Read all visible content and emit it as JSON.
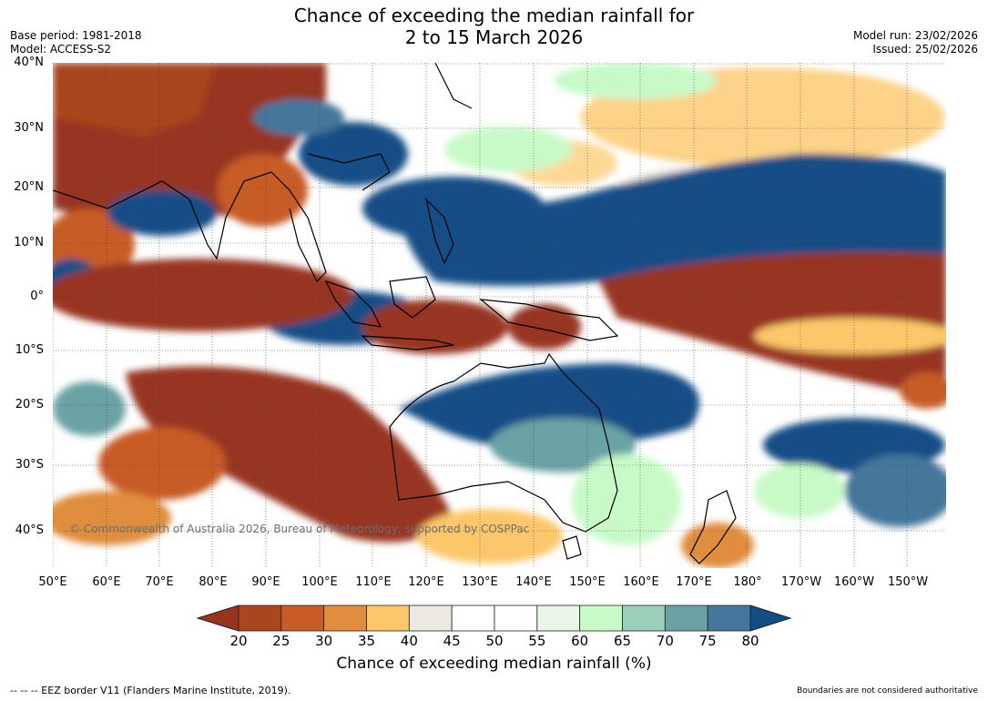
{
  "header": {
    "title_line1": "Chance of exceeding the median rainfall for",
    "title_line2": "2 to 15 March 2026",
    "base_period": "Base period: 1981-2018",
    "model": "Model: ACCESS-S2",
    "model_run": "Model run: 23/02/2026",
    "issued": "Issued: 25/02/2026"
  },
  "map": {
    "lat_labels": [
      "40°N",
      "30°N",
      "20°N",
      "10°N",
      "0°",
      "10°S",
      "20°S",
      "30°S",
      "40°S"
    ],
    "lon_labels": [
      "50°E",
      "60°E",
      "70°E",
      "80°E",
      "90°E",
      "100°E",
      "110°E",
      "120°E",
      "130°E",
      "140°E",
      "150°E",
      "160°E",
      "170°E",
      "180°",
      "170°W",
      "160°W",
      "150°W"
    ],
    "copyright": "© Commonwealth of Australia 2026, Bureau of Meteorology, supported by COSPPac"
  },
  "colorbar": {
    "ticks": [
      "20",
      "25",
      "30",
      "35",
      "40",
      "45",
      "50",
      "55",
      "60",
      "65",
      "70",
      "75",
      "80"
    ],
    "colors": [
      "#973420",
      "#a9451f",
      "#c85b27",
      "#e08d3e",
      "#fcc76a",
      "#ebe9e2",
      "#ffffff",
      "#ffffff",
      "#e8f5e8",
      "#c8fac8",
      "#9bcfba",
      "#6aa2a6",
      "#44779b",
      "#134d86"
    ],
    "label": "Chance of exceeding median rainfall (%)"
  },
  "footer": {
    "eez_note": "--  --  -- EEZ border V11 (Flanders Marine Institute, 2019).",
    "boundary_note": "Boundaries are not considered authoritative"
  }
}
